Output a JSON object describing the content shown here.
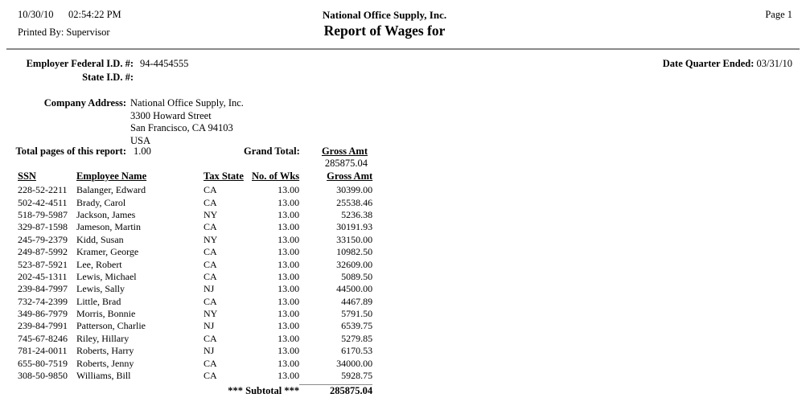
{
  "header": {
    "date": "10/30/10",
    "time": "02:54:22 PM",
    "printed_by": "Printed By: Supervisor",
    "company": "National Office Supply, Inc.",
    "title": "Report of Wages for",
    "page": "Page 1"
  },
  "info": {
    "employer_federal_id_label": "Employer Federal I.D. #:",
    "employer_federal_id": "94-4454555",
    "state_id_label": "State I.D. #:",
    "date_quarter_ended_label": "Date Quarter Ended:",
    "date_quarter_ended": "03/31/10",
    "company_address_label": "Company Address:",
    "company_address": [
      "National Office Supply, Inc.",
      "3300 Howard Street",
      "San Francisco, CA 94103",
      "USA"
    ],
    "total_pages_label": "Total pages of this report:",
    "total_pages": "1.00",
    "grand_total_label": "Grand Total:",
    "grand_total_column": "Gross Amt",
    "grand_total_value": "285875.04"
  },
  "table": {
    "headers": [
      "SSN",
      "Employee Name",
      "Tax State",
      "No. of Wks",
      "Gross Amt"
    ],
    "rows": [
      [
        "228-52-2211",
        "Balanger, Edward",
        "CA",
        "13.00",
        "30399.00"
      ],
      [
        "502-42-4511",
        "Brady, Carol",
        "CA",
        "13.00",
        "25538.46"
      ],
      [
        "518-79-5987",
        "Jackson, James",
        "NY",
        "13.00",
        "5236.38"
      ],
      [
        "329-87-1598",
        "Jameson, Martin",
        "CA",
        "13.00",
        "30191.93"
      ],
      [
        "245-79-2379",
        "Kidd, Susan",
        "NY",
        "13.00",
        "33150.00"
      ],
      [
        "249-87-5992",
        "Kramer, George",
        "CA",
        "13.00",
        "10982.50"
      ],
      [
        "523-87-5921",
        "Lee, Robert",
        "CA",
        "13.00",
        "32609.00"
      ],
      [
        "202-45-1311",
        "Lewis, Michael",
        "CA",
        "13.00",
        "5089.50"
      ],
      [
        "239-84-7997",
        "Lewis, Sally",
        "NJ",
        "13.00",
        "44500.00"
      ],
      [
        "732-74-2399",
        "Little, Brad",
        "CA",
        "13.00",
        "4467.89"
      ],
      [
        "349-86-7979",
        "Morris, Bonnie",
        "NY",
        "13.00",
        "5791.50"
      ],
      [
        "239-84-7991",
        "Patterson, Charlie",
        "NJ",
        "13.00",
        "6539.75"
      ],
      [
        "745-67-8246",
        "Riley, Hillary",
        "CA",
        "13.00",
        "5279.85"
      ],
      [
        "781-24-0011",
        "Roberts, Harry",
        "NJ",
        "13.00",
        "6170.53"
      ],
      [
        "655-80-7519",
        "Roberts, Jenny",
        "CA",
        "13.00",
        "34000.00"
      ],
      [
        "308-50-9850",
        "Williams, Bill",
        "CA",
        "13.00",
        "5928.75"
      ]
    ],
    "subtotal_label": "*** Subtotal ***",
    "subtotal_value": "285875.04"
  }
}
